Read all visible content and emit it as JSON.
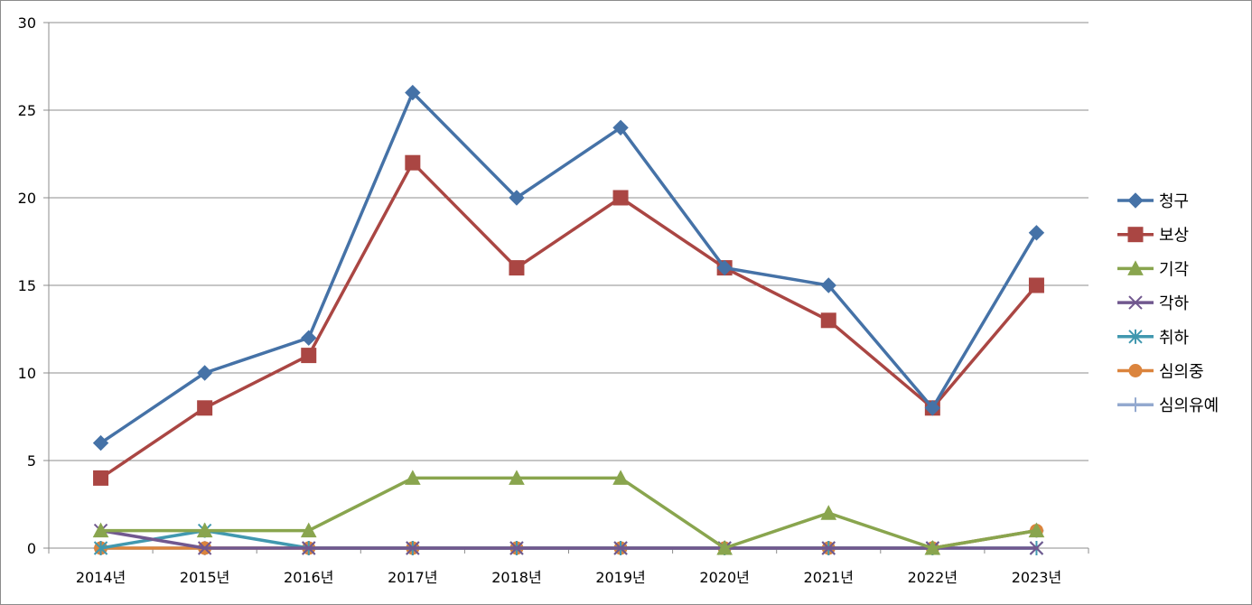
{
  "chart_data": {
    "type": "line",
    "categories": [
      "2014년",
      "2015년",
      "2016년",
      "2017년",
      "2018년",
      "2019년",
      "2020년",
      "2021년",
      "2022년",
      "2023년"
    ],
    "ylim": [
      0,
      30
    ],
    "yticks": [
      0,
      5,
      10,
      15,
      20,
      25,
      30
    ],
    "grid": true,
    "legend_position": "right",
    "series": [
      {
        "name": "청구",
        "color": "#4572a7",
        "marker": "diamond",
        "values": [
          6,
          10,
          12,
          26,
          20,
          24,
          16,
          15,
          8,
          18
        ]
      },
      {
        "name": "보상",
        "color": "#aa4643",
        "marker": "square",
        "values": [
          4,
          8,
          11,
          22,
          16,
          20,
          16,
          13,
          8,
          15
        ]
      },
      {
        "name": "기각",
        "color": "#89a54e",
        "marker": "triangle",
        "values": [
          1,
          1,
          1,
          4,
          4,
          4,
          0,
          2,
          0,
          1
        ]
      },
      {
        "name": "각하",
        "color": "#71588f",
        "marker": "x",
        "values": [
          1,
          0,
          0,
          0,
          0,
          0,
          0,
          0,
          0,
          0
        ]
      },
      {
        "name": "취하",
        "color": "#4198af",
        "marker": "star",
        "values": [
          0,
          1,
          0,
          0,
          0,
          0,
          0,
          0,
          0,
          0
        ]
      },
      {
        "name": "심의중",
        "color": "#db843d",
        "marker": "circle",
        "values": [
          0,
          0,
          0,
          0,
          0,
          0,
          0,
          0,
          0,
          1
        ]
      },
      {
        "name": "심의유예",
        "color": "#93a9cf",
        "marker": "plus",
        "values": [
          0,
          0,
          0,
          0,
          0,
          0,
          0,
          0,
          0,
          1
        ]
      }
    ]
  }
}
